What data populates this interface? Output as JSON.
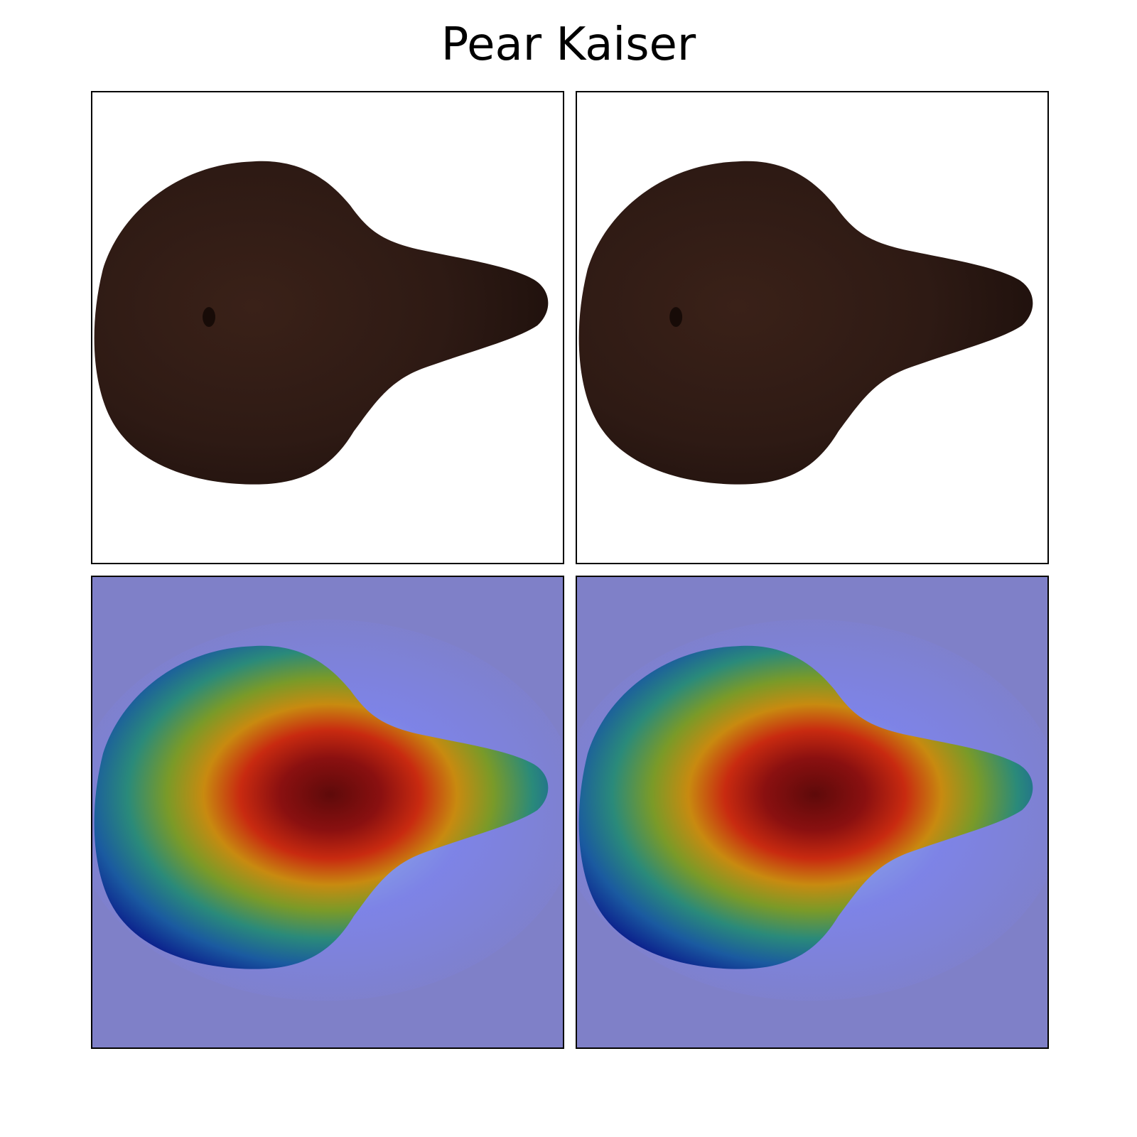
{
  "figure": {
    "title": "Pear Kaiser"
  },
  "panels": [
    {
      "role": "original-photo",
      "subject": "pear-kaiser",
      "row": 1,
      "col": 1
    },
    {
      "role": "original-photo",
      "subject": "pear-kaiser",
      "row": 1,
      "col": 2
    },
    {
      "role": "heatmap-overlay",
      "colormap": "jet",
      "row": 2,
      "col": 1
    },
    {
      "role": "heatmap-overlay",
      "colormap": "jet",
      "row": 2,
      "col": 2
    }
  ],
  "colors": {
    "pear_body": "#2e1a14",
    "pear_shadow": "#22130f",
    "overlay_background": "#7f80c8",
    "border": "#000000"
  }
}
